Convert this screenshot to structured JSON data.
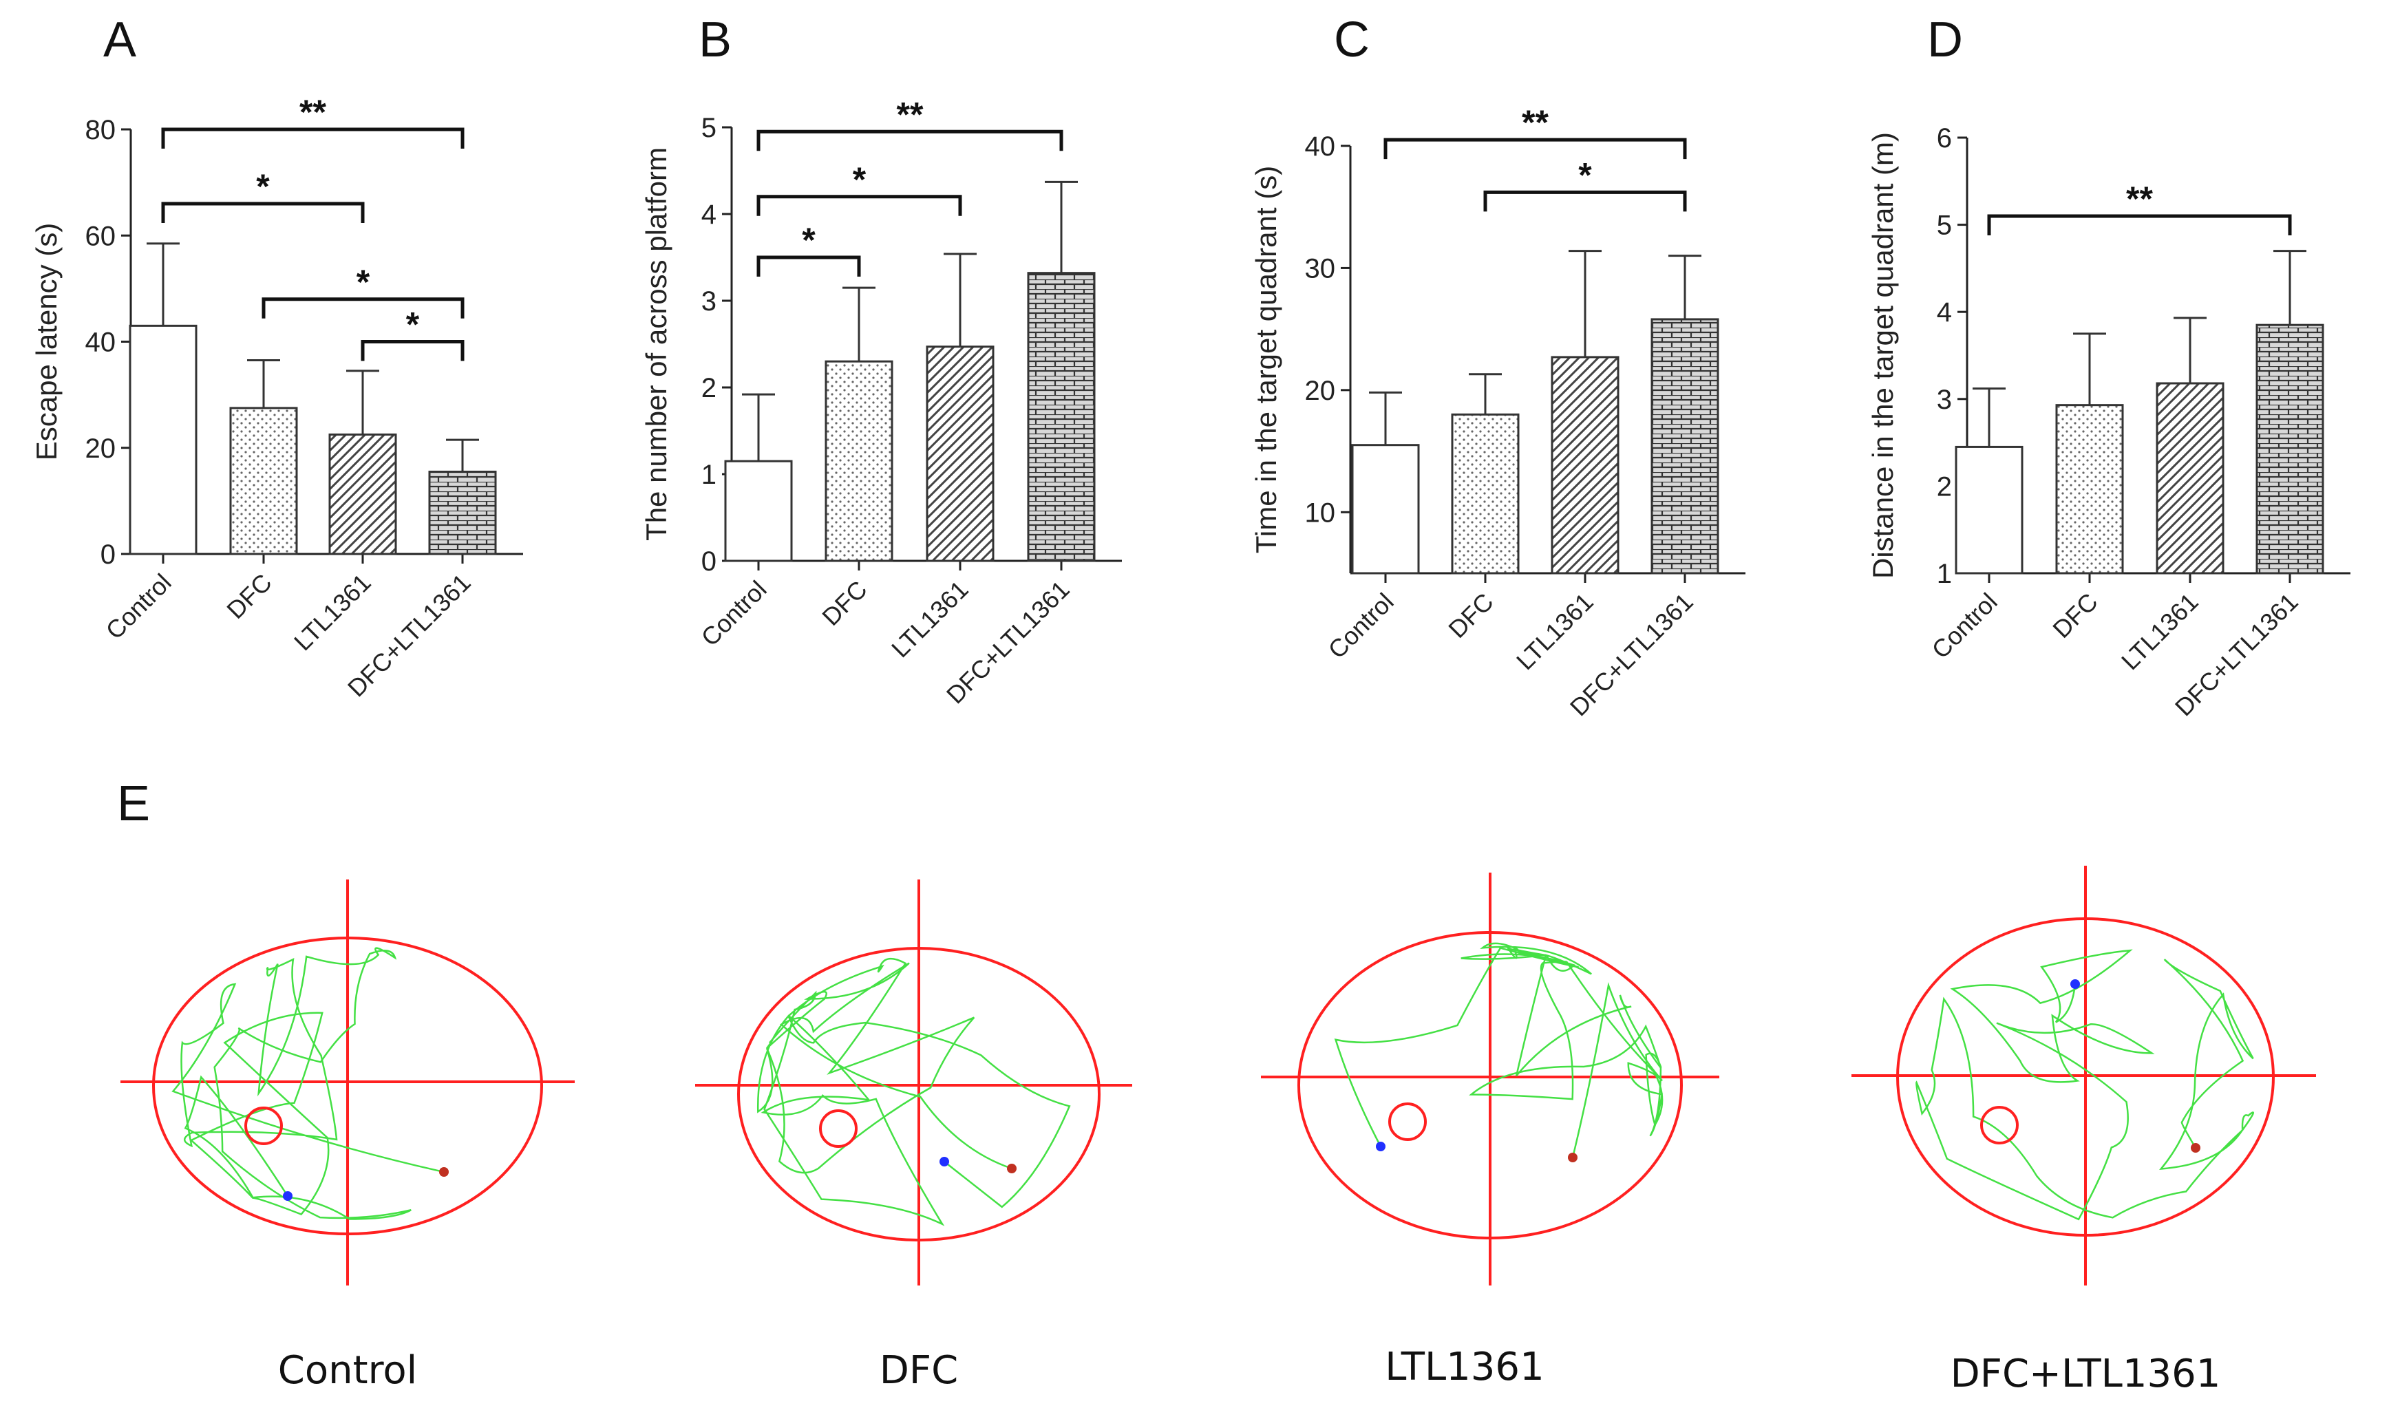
{
  "panels": {
    "A": "A",
    "B": "B",
    "C": "C",
    "D": "D",
    "E": "E"
  },
  "chart_data": [
    {
      "type": "bar",
      "panel": "A",
      "categories": [
        "Control",
        "DFC",
        "LTL1361",
        "DFC+LTL1361"
      ],
      "values": [
        43,
        27.5,
        22.5,
        15.5
      ],
      "errors": [
        15.5,
        9,
        12,
        6
      ],
      "ylabel": "Escape latency (s)",
      "ylim": [
        0,
        80
      ],
      "ticks": [
        0,
        20,
        40,
        60,
        80
      ],
      "fills": [
        "blank",
        "dots",
        "hatch",
        "brick"
      ],
      "significance": [
        {
          "from": 0,
          "to": 3,
          "label": "**",
          "level": 80
        },
        {
          "from": 0,
          "to": 2,
          "label": "*",
          "level": 66
        },
        {
          "from": 1,
          "to": 3,
          "label": "*",
          "level": 48
        },
        {
          "from": 2,
          "to": 3,
          "label": "*",
          "level": 40
        }
      ]
    },
    {
      "type": "bar",
      "panel": "B",
      "categories": [
        "Control",
        "DFC",
        "LTL1361",
        "DFC+LTL1361"
      ],
      "values": [
        1.15,
        2.3,
        2.47,
        3.32
      ],
      "errors": [
        0.77,
        0.85,
        1.07,
        1.05
      ],
      "ylabel": "The number of across platform",
      "ylim": [
        0,
        5
      ],
      "ticks": [
        0,
        1,
        2,
        3,
        4,
        5
      ],
      "fills": [
        "blank",
        "dots",
        "hatch",
        "brick"
      ],
      "significance": [
        {
          "from": 0,
          "to": 3,
          "label": "**",
          "level": 4.95
        },
        {
          "from": 0,
          "to": 2,
          "label": "*",
          "level": 4.2
        },
        {
          "from": 0,
          "to": 1,
          "label": "*",
          "level": 3.5
        }
      ]
    },
    {
      "type": "bar",
      "panel": "C",
      "categories": [
        "Control",
        "DFC",
        "LTL1361",
        "DFC+LTL1361"
      ],
      "values": [
        15.5,
        18,
        22.7,
        25.8
      ],
      "errors": [
        4.3,
        3.3,
        8.7,
        5.2
      ],
      "ylabel": "Time in the target quadrant (s)",
      "ylim": [
        5,
        40
      ],
      "ticks": [
        10,
        20,
        30,
        40
      ],
      "fills": [
        "blank",
        "dots",
        "hatch",
        "brick"
      ],
      "significance": [
        {
          "from": 0,
          "to": 3,
          "label": "**",
          "level": 40.5
        },
        {
          "from": 1,
          "to": 3,
          "label": "*",
          "level": 36.2
        }
      ]
    },
    {
      "type": "bar",
      "panel": "D",
      "categories": [
        "Control",
        "DFC",
        "LTL1361",
        "DFC+LTL1361"
      ],
      "values": [
        2.45,
        2.93,
        3.18,
        3.85
      ],
      "errors": [
        0.67,
        0.82,
        0.75,
        0.85
      ],
      "ylabel": "Distance in the target quadrant (m)",
      "ylim": [
        1,
        6
      ],
      "ticks": [
        1,
        2,
        3,
        4,
        5,
        6
      ],
      "fills": [
        "blank",
        "dots",
        "hatch",
        "brick"
      ],
      "significance": [
        {
          "from": 0,
          "to": 3,
          "label": "**",
          "level": 5.1
        }
      ]
    }
  ],
  "tracks": [
    {
      "label": "Control",
      "seed": 11
    },
    {
      "label": "DFC",
      "seed": 23
    },
    {
      "label": "LTL1361",
      "seed": 37
    },
    {
      "label": "DFC+LTL1361",
      "seed": 53
    }
  ],
  "colors": {
    "axis": "#222222",
    "bar_edge": "#333333",
    "pool": "#ff2020",
    "path": "#44e044",
    "start": "#2030ff",
    "end": "#c03020"
  }
}
